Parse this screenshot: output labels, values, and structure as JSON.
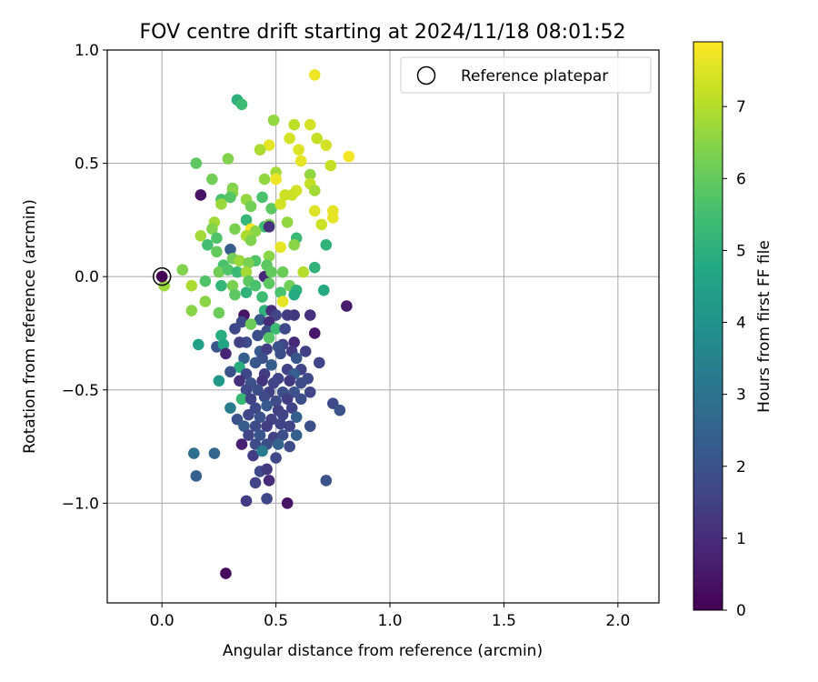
{
  "chart_data": {
    "type": "scatter",
    "title": "FOV centre drift starting at 2024/11/18 08:01:52",
    "xlabel": "Angular distance from reference (arcmin)",
    "ylabel": "Rotation from reference (arcmin)",
    "xlim": [
      -0.24,
      2.18
    ],
    "ylim": [
      -1.44,
      1.0
    ],
    "xticks": [
      0.0,
      0.5,
      1.0,
      1.5,
      2.0
    ],
    "xtick_labels": [
      "0.0",
      "0.5",
      "1.0",
      "1.5",
      "2.0"
    ],
    "yticks": [
      1.0,
      0.5,
      0.0,
      -0.5,
      -1.0
    ],
    "ytick_labels": [
      "1.0",
      "0.5",
      "0.0",
      "−0.5",
      "−1.0"
    ],
    "grid": true,
    "legend": {
      "position": "top-right",
      "label": "Reference platepar"
    },
    "colorbar": {
      "label": "Hours from first FF file",
      "colormap": "viridis",
      "range": [
        0,
        7.9
      ],
      "ticks": [
        0,
        1,
        2,
        3,
        4,
        5,
        6,
        7
      ],
      "tick_labels": [
        "0",
        "1",
        "2",
        "3",
        "4",
        "5",
        "6",
        "7"
      ]
    },
    "reference_point": {
      "x": 0.0,
      "y": 0.0
    },
    "series": [
      {
        "points": [
          [
            0.67,
            0.89,
            7.7
          ],
          [
            0.33,
            0.78,
            5.0
          ],
          [
            0.35,
            0.76,
            5.4
          ],
          [
            0.49,
            0.69,
            6.6
          ],
          [
            0.65,
            0.67,
            7.4
          ],
          [
            0.58,
            0.67,
            7.1
          ],
          [
            0.47,
            0.58,
            7.6
          ],
          [
            0.56,
            0.61,
            7.4
          ],
          [
            0.68,
            0.61,
            7.2
          ],
          [
            0.72,
            0.58,
            7.4
          ],
          [
            0.43,
            0.56,
            6.9
          ],
          [
            0.6,
            0.56,
            7.5
          ],
          [
            0.61,
            0.51,
            7.6
          ],
          [
            0.82,
            0.53,
            7.8
          ],
          [
            0.15,
            0.5,
            5.9
          ],
          [
            0.29,
            0.52,
            6.4
          ],
          [
            0.5,
            0.46,
            6.8
          ],
          [
            0.74,
            0.49,
            7.2
          ],
          [
            0.65,
            0.45,
            6.6
          ],
          [
            0.22,
            0.43,
            6.2
          ],
          [
            0.45,
            0.43,
            6.6
          ],
          [
            0.5,
            0.43,
            7.7
          ],
          [
            0.65,
            0.41,
            7.2
          ],
          [
            0.31,
            0.39,
            6.4
          ],
          [
            0.54,
            0.36,
            7.3
          ],
          [
            0.59,
            0.38,
            7.4
          ],
          [
            0.67,
            0.38,
            6.8
          ],
          [
            0.17,
            0.36,
            0.4
          ],
          [
            0.26,
            0.34,
            5.6
          ],
          [
            0.31,
            0.37,
            6.5
          ],
          [
            0.37,
            0.34,
            6.6
          ],
          [
            0.44,
            0.35,
            5.6
          ],
          [
            0.57,
            0.36,
            7.3
          ],
          [
            0.26,
            0.32,
            6.7
          ],
          [
            0.3,
            0.35,
            5.8
          ],
          [
            0.39,
            0.31,
            6.2
          ],
          [
            0.48,
            0.3,
            5.9
          ],
          [
            0.52,
            0.32,
            7.4
          ],
          [
            0.67,
            0.29,
            7.5
          ],
          [
            0.75,
            0.29,
            7.6
          ],
          [
            0.75,
            0.26,
            7.6
          ],
          [
            0.23,
            0.24,
            6.8
          ],
          [
            0.37,
            0.25,
            5.2
          ],
          [
            0.45,
            0.22,
            5.4
          ],
          [
            0.47,
            0.23,
            6.3
          ],
          [
            0.55,
            0.24,
            6.6
          ],
          [
            0.7,
            0.23,
            7.3
          ],
          [
            0.22,
            0.21,
            6.4
          ],
          [
            0.32,
            0.21,
            6.3
          ],
          [
            0.39,
            0.21,
            7.8
          ],
          [
            0.41,
            0.2,
            6.5
          ],
          [
            0.47,
            0.22,
            1.1
          ],
          [
            0.17,
            0.18,
            6.8
          ],
          [
            0.24,
            0.17,
            5.7
          ],
          [
            0.37,
            0.18,
            6.9
          ],
          [
            0.39,
            0.16,
            6.4
          ],
          [
            0.59,
            0.17,
            5.3
          ],
          [
            0.2,
            0.14,
            5.5
          ],
          [
            0.3,
            0.12,
            2.3
          ],
          [
            0.24,
            0.11,
            6.0
          ],
          [
            0.52,
            0.13,
            7.6
          ],
          [
            0.58,
            0.14,
            6.5
          ],
          [
            0.72,
            0.14,
            5.1
          ],
          [
            0.31,
            0.08,
            6.2
          ],
          [
            0.34,
            0.07,
            6.7
          ],
          [
            0.41,
            0.07,
            5.7
          ],
          [
            0.47,
            0.09,
            6.5
          ],
          [
            0.27,
            0.05,
            5.6
          ],
          [
            0.38,
            0.06,
            6.3
          ],
          [
            0.46,
            0.05,
            5.9
          ],
          [
            0.67,
            0.04,
            5.1
          ],
          [
            0.09,
            0.03,
            6.4
          ],
          [
            0.25,
            0.02,
            6.2
          ],
          [
            0.29,
            0.03,
            5.7
          ],
          [
            0.33,
            0.02,
            5.3
          ],
          [
            0.37,
            0.02,
            6.8
          ],
          [
            0.45,
            0.0,
            0.9
          ],
          [
            0.48,
            0.02,
            6.0
          ],
          [
            0.53,
            0.02,
            6.1
          ],
          [
            0.62,
            0.02,
            7.0
          ],
          [
            0.01,
            -0.04,
            6.7
          ],
          [
            0.13,
            -0.04,
            6.9
          ],
          [
            0.19,
            -0.02,
            5.7
          ],
          [
            0.26,
            -0.04,
            5.2
          ],
          [
            0.31,
            -0.04,
            6.3
          ],
          [
            0.38,
            -0.02,
            5.9
          ],
          [
            0.41,
            -0.04,
            5.6
          ],
          [
            0.47,
            -0.03,
            5.9
          ],
          [
            0.56,
            -0.04,
            6.2
          ],
          [
            0.59,
            -0.06,
            5.0
          ],
          [
            0.71,
            -0.06,
            4.8
          ],
          [
            0.37,
            -0.07,
            5.1
          ],
          [
            0.32,
            -0.08,
            5.9
          ],
          [
            0.44,
            -0.09,
            5.4
          ],
          [
            0.52,
            -0.07,
            5.6
          ],
          [
            0.58,
            -0.08,
            4.8
          ],
          [
            0.19,
            -0.11,
            6.5
          ],
          [
            0.53,
            -0.11,
            7.6
          ],
          [
            0.81,
            -0.13,
            0.6
          ],
          [
            0.13,
            -0.15,
            6.5
          ],
          [
            0.25,
            -0.16,
            6.1
          ],
          [
            0.36,
            -0.17,
            0.4
          ],
          [
            0.45,
            -0.15,
            5.1
          ],
          [
            0.48,
            -0.15,
            1.0
          ],
          [
            0.5,
            -0.17,
            1.6
          ],
          [
            0.55,
            -0.17,
            1.4
          ],
          [
            0.58,
            -0.17,
            1.3
          ],
          [
            0.65,
            -0.17,
            1.1
          ],
          [
            0.35,
            -0.2,
            1.7
          ],
          [
            0.43,
            -0.19,
            2.2
          ],
          [
            0.47,
            -0.2,
            1.0
          ],
          [
            0.32,
            -0.23,
            1.7
          ],
          [
            0.39,
            -0.21,
            6.1
          ],
          [
            0.46,
            -0.24,
            1.9
          ],
          [
            0.5,
            -0.23,
            5.4
          ],
          [
            0.54,
            -0.23,
            1.7
          ],
          [
            0.67,
            -0.25,
            0.5
          ],
          [
            0.16,
            -0.3,
            4.5
          ],
          [
            0.26,
            -0.26,
            4.9
          ],
          [
            0.37,
            -0.29,
            1.8
          ],
          [
            0.42,
            -0.26,
            1.9
          ],
          [
            0.47,
            -0.27,
            5.8
          ],
          [
            0.53,
            -0.3,
            1.6
          ],
          [
            0.58,
            -0.29,
            0.9
          ],
          [
            0.24,
            -0.31,
            2.1
          ],
          [
            0.27,
            -0.3,
            4.6
          ],
          [
            0.34,
            -0.29,
            1.5
          ],
          [
            0.43,
            -0.33,
            2.2
          ],
          [
            0.46,
            -0.32,
            1.4
          ],
          [
            0.51,
            -0.31,
            2.0
          ],
          [
            0.57,
            -0.33,
            1.3
          ],
          [
            0.63,
            -0.33,
            1.5
          ],
          [
            0.28,
            -0.34,
            0.8
          ],
          [
            0.36,
            -0.36,
            2.4
          ],
          [
            0.44,
            -0.36,
            1.9
          ],
          [
            0.52,
            -0.34,
            1.9
          ],
          [
            0.59,
            -0.36,
            2.1
          ],
          [
            0.69,
            -0.38,
            1.6
          ],
          [
            0.34,
            -0.4,
            4.9
          ],
          [
            0.41,
            -0.38,
            2.1
          ],
          [
            0.48,
            -0.39,
            2.3
          ],
          [
            0.55,
            -0.41,
            1.5
          ],
          [
            0.61,
            -0.41,
            1.6
          ],
          [
            0.3,
            -0.42,
            2.0
          ],
          [
            0.37,
            -0.43,
            1.7
          ],
          [
            0.45,
            -0.43,
            1.4
          ],
          [
            0.51,
            -0.45,
            1.6
          ],
          [
            0.58,
            -0.43,
            2.4
          ],
          [
            0.64,
            -0.45,
            1.7
          ],
          [
            0.25,
            -0.46,
            4.2
          ],
          [
            0.34,
            -0.46,
            1.1
          ],
          [
            0.39,
            -0.47,
            2.0
          ],
          [
            0.44,
            -0.46,
            1.2
          ],
          [
            0.49,
            -0.47,
            1.6
          ],
          [
            0.56,
            -0.46,
            1.3
          ],
          [
            0.61,
            -0.47,
            1.8
          ],
          [
            0.37,
            -0.5,
            1.7
          ],
          [
            0.42,
            -0.5,
            1.9
          ],
          [
            0.47,
            -0.51,
            1.5
          ],
          [
            0.53,
            -0.51,
            1.9
          ],
          [
            0.58,
            -0.51,
            2.0
          ],
          [
            0.65,
            -0.51,
            1.6
          ],
          [
            0.35,
            -0.54,
            5.3
          ],
          [
            0.39,
            -0.54,
            1.6
          ],
          [
            0.45,
            -0.53,
            1.7
          ],
          [
            0.5,
            -0.55,
            1.8
          ],
          [
            0.55,
            -0.54,
            1.4
          ],
          [
            0.61,
            -0.54,
            1.9
          ],
          [
            0.75,
            -0.56,
            1.8
          ],
          [
            0.3,
            -0.58,
            3.3
          ],
          [
            0.41,
            -0.58,
            1.7
          ],
          [
            0.46,
            -0.57,
            2.2
          ],
          [
            0.51,
            -0.59,
            1.5
          ],
          [
            0.57,
            -0.58,
            1.6
          ],
          [
            0.78,
            -0.59,
            2.0
          ],
          [
            0.33,
            -0.63,
            2.0
          ],
          [
            0.38,
            -0.61,
            1.7
          ],
          [
            0.43,
            -0.62,
            2.0
          ],
          [
            0.48,
            -0.63,
            1.5
          ],
          [
            0.53,
            -0.61,
            1.6
          ],
          [
            0.59,
            -0.62,
            2.4
          ],
          [
            0.36,
            -0.66,
            2.3
          ],
          [
            0.41,
            -0.66,
            1.8
          ],
          [
            0.46,
            -0.66,
            1.4
          ],
          [
            0.52,
            -0.65,
            1.6
          ],
          [
            0.56,
            -0.66,
            1.6
          ],
          [
            0.65,
            -0.66,
            1.9
          ],
          [
            0.38,
            -0.7,
            1.6
          ],
          [
            0.43,
            -0.7,
            2.1
          ],
          [
            0.49,
            -0.71,
            1.5
          ],
          [
            0.53,
            -0.7,
            1.9
          ],
          [
            0.59,
            -0.7,
            2.4
          ],
          [
            0.35,
            -0.74,
            0.7
          ],
          [
            0.41,
            -0.74,
            1.8
          ],
          [
            0.46,
            -0.74,
            1.9
          ],
          [
            0.51,
            -0.74,
            2.5
          ],
          [
            0.56,
            -0.75,
            1.8
          ],
          [
            0.14,
            -0.78,
            2.9
          ],
          [
            0.23,
            -0.78,
            2.6
          ],
          [
            0.4,
            -0.79,
            1.4
          ],
          [
            0.44,
            -0.77,
            3.3
          ],
          [
            0.5,
            -0.8,
            1.7
          ],
          [
            0.43,
            -0.86,
            1.7
          ],
          [
            0.46,
            -0.85,
            1.3
          ],
          [
            0.15,
            -0.88,
            2.4
          ],
          [
            0.47,
            -0.9,
            1.0
          ],
          [
            0.72,
            -0.9,
            2.0
          ],
          [
            0.41,
            -0.91,
            1.6
          ],
          [
            0.37,
            -0.99,
            1.4
          ],
          [
            0.46,
            -0.98,
            1.7
          ],
          [
            0.55,
            -1.0,
            0.4
          ],
          [
            0.28,
            -1.31,
            0.2
          ]
        ]
      }
    ]
  }
}
